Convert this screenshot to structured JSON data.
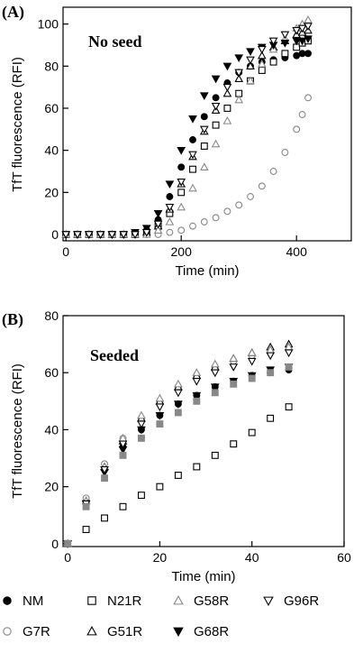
{
  "chart_data": [
    {
      "type": "scatter",
      "panel_label": "(A)",
      "annotation": "No seed",
      "xlabel": "Time (min)",
      "ylabel": "TfT fluorescence (RFI)",
      "xlim": [
        -5,
        495
      ],
      "ylim": [
        -3,
        108
      ],
      "xticks": [
        0,
        200,
        400
      ],
      "yticks": [
        0,
        20,
        40,
        60,
        80,
        100
      ],
      "grid": false,
      "series": [
        {
          "name": "NM",
          "marker": "circle",
          "filled": true,
          "color": "#000000",
          "x": [
            0,
            20,
            40,
            60,
            80,
            100,
            120,
            140,
            160,
            180,
            200,
            220,
            240,
            260,
            280,
            300,
            320,
            340,
            360,
            380,
            400,
            410,
            420
          ],
          "y": [
            0,
            0,
            0,
            0,
            0,
            0,
            0,
            2,
            7,
            18,
            32,
            45,
            56,
            65,
            72,
            77,
            80,
            82,
            83,
            84,
            85,
            86,
            86
          ]
        },
        {
          "name": "G7R",
          "marker": "circle",
          "filled": false,
          "color": "#888888",
          "x": [
            0,
            20,
            40,
            60,
            80,
            100,
            120,
            140,
            160,
            180,
            200,
            220,
            240,
            260,
            280,
            300,
            320,
            340,
            360,
            380,
            400,
            410,
            420
          ],
          "y": [
            0,
            0,
            0,
            0,
            0,
            0,
            0,
            0,
            0,
            1,
            2,
            4,
            6,
            8,
            11,
            14,
            18,
            23,
            30,
            39,
            50,
            57,
            65
          ]
        },
        {
          "name": "N21R",
          "marker": "square",
          "filled": false,
          "color": "#000000",
          "x": [
            0,
            20,
            40,
            60,
            80,
            100,
            120,
            140,
            160,
            180,
            200,
            220,
            240,
            260,
            280,
            300,
            320,
            340,
            360,
            380,
            400,
            410,
            420
          ],
          "y": [
            0,
            0,
            0,
            0,
            0,
            0,
            0,
            1,
            4,
            10,
            20,
            31,
            42,
            52,
            60,
            67,
            73,
            78,
            82,
            86,
            89,
            91,
            92
          ]
        },
        {
          "name": "G51R",
          "marker": "triangle-up",
          "filled": false,
          "color": "#000000",
          "x": [
            0,
            20,
            40,
            60,
            80,
            100,
            120,
            140,
            160,
            180,
            200,
            220,
            240,
            260,
            280,
            300,
            320,
            340,
            360,
            380,
            400,
            410,
            420
          ],
          "y": [
            0,
            0,
            0,
            0,
            0,
            0,
            0,
            1,
            4,
            12,
            24,
            37,
            49,
            59,
            67,
            74,
            80,
            85,
            89,
            92,
            95,
            96,
            97
          ]
        },
        {
          "name": "G58R",
          "marker": "triangle-up",
          "filled": false,
          "color": "#888888",
          "x": [
            0,
            20,
            40,
            60,
            80,
            100,
            120,
            140,
            160,
            180,
            200,
            220,
            240,
            260,
            280,
            300,
            320,
            340,
            360,
            380,
            400,
            410,
            420
          ],
          "y": [
            0,
            0,
            0,
            0,
            0,
            0,
            0,
            0,
            2,
            6,
            13,
            22,
            32,
            43,
            54,
            64,
            73,
            81,
            88,
            93,
            98,
            100,
            102
          ]
        },
        {
          "name": "G68R",
          "marker": "triangle-down",
          "filled": true,
          "color": "#000000",
          "x": [
            0,
            20,
            40,
            60,
            80,
            100,
            120,
            140,
            160,
            180,
            200,
            220,
            240,
            260,
            280,
            300,
            320,
            340,
            360,
            380,
            400,
            410,
            420
          ],
          "y": [
            0,
            0,
            0,
            0,
            0,
            0,
            1,
            3,
            10,
            24,
            40,
            55,
            66,
            74,
            80,
            84,
            87,
            89,
            90,
            91,
            92,
            92,
            93
          ]
        },
        {
          "name": "G96R",
          "marker": "triangle-down",
          "filled": false,
          "color": "#000000",
          "x": [
            0,
            20,
            40,
            60,
            80,
            100,
            120,
            140,
            160,
            180,
            200,
            220,
            240,
            260,
            280,
            300,
            320,
            340,
            360,
            380,
            400,
            410,
            420
          ],
          "y": [
            0,
            0,
            0,
            0,
            0,
            0,
            0,
            1,
            5,
            13,
            25,
            38,
            50,
            61,
            70,
            77,
            83,
            88,
            92,
            95,
            97,
            98,
            99
          ]
        }
      ]
    },
    {
      "type": "scatter",
      "panel_label": "(B)",
      "annotation": "Seeded",
      "xlabel": "Time (min)",
      "ylabel": "TfT fluorescence (RFI)",
      "xlim": [
        -1,
        60
      ],
      "ylim": [
        -1,
        80
      ],
      "xticks": [
        0,
        20,
        40,
        60
      ],
      "yticks": [
        0,
        20,
        40,
        60,
        80
      ],
      "grid": false,
      "series": [
        {
          "name": "NM",
          "marker": "circle",
          "filled": true,
          "color": "#000000",
          "x": [
            0,
            4,
            8,
            12,
            16,
            20,
            24,
            28,
            32,
            36,
            40,
            44,
            48
          ],
          "y": [
            0,
            15,
            26,
            34,
            40,
            45,
            49,
            52,
            55,
            57,
            59,
            60,
            61
          ]
        },
        {
          "name": "G7R",
          "marker": "circle",
          "filled": false,
          "color": "#888888",
          "x": [
            0,
            4,
            8,
            12,
            16,
            20,
            24,
            28,
            32,
            36,
            40,
            44,
            48
          ],
          "y": [
            0,
            16,
            28,
            37,
            44,
            50,
            55,
            59,
            62,
            64,
            66,
            67,
            68
          ]
        },
        {
          "name": "N21R",
          "marker": "square",
          "filled": false,
          "color": "#000000",
          "x": [
            0,
            4,
            8,
            12,
            16,
            20,
            24,
            28,
            32,
            36,
            40,
            44,
            48
          ],
          "y": [
            0,
            5,
            9,
            13,
            17,
            20,
            24,
            27,
            31,
            35,
            39,
            44,
            48
          ]
        },
        {
          "name": "G51R",
          "marker": "triangle-up",
          "filled": false,
          "color": "#000000",
          "x": [
            0,
            4,
            8,
            12,
            16,
            20,
            24,
            28,
            32,
            36,
            40,
            44,
            48
          ],
          "y": [
            0,
            15,
            27,
            36,
            44,
            50,
            55,
            59,
            62,
            65,
            67,
            69,
            70
          ]
        },
        {
          "name": "G58R",
          "marker": "triangle-up",
          "filled": false,
          "color": "#888888",
          "x": [
            0,
            4,
            8,
            12,
            16,
            20,
            24,
            28,
            32,
            36,
            40,
            44,
            48
          ],
          "y": [
            0,
            15,
            27,
            37,
            45,
            51,
            56,
            60,
            63,
            65,
            67,
            68,
            69
          ]
        },
        {
          "name": "G68R",
          "marker": "triangle-down",
          "filled": true,
          "color": "#000000",
          "x": [
            0,
            4,
            8,
            12,
            16,
            20,
            24,
            28,
            32,
            36,
            40,
            44,
            48
          ],
          "y": [
            0,
            14,
            25,
            33,
            40,
            45,
            49,
            52,
            55,
            57,
            59,
            61,
            62
          ]
        },
        {
          "name": "G96R",
          "marker": "triangle-down",
          "filled": false,
          "color": "#000000",
          "x": [
            0,
            4,
            8,
            12,
            16,
            20,
            24,
            28,
            32,
            36,
            40,
            44,
            48
          ],
          "y": [
            0,
            14,
            26,
            35,
            42,
            48,
            53,
            57,
            60,
            62,
            64,
            66,
            67
          ]
        },
        {
          "name": "",
          "marker": "square",
          "filled": true,
          "color": "#888888",
          "x": [
            0,
            4,
            8,
            12,
            16,
            20,
            24,
            28,
            32,
            36,
            40,
            44,
            48
          ],
          "y": [
            0,
            13,
            23,
            31,
            37,
            42,
            46,
            50,
            53,
            56,
            58,
            60,
            62
          ]
        }
      ]
    }
  ],
  "legend": {
    "placement": "bottom",
    "items": [
      {
        "label": "NM",
        "marker": "circle",
        "filled": true,
        "color": "#000000"
      },
      {
        "label": "N21R",
        "marker": "square",
        "filled": false,
        "color": "#000000"
      },
      {
        "label": "G58R",
        "marker": "triangle-up",
        "filled": false,
        "color": "#888888"
      },
      {
        "label": "G96R",
        "marker": "triangle-down",
        "filled": false,
        "color": "#000000"
      },
      {
        "label": "G7R",
        "marker": "circle",
        "filled": false,
        "color": "#888888"
      },
      {
        "label": "G51R",
        "marker": "triangle-up",
        "filled": false,
        "color": "#000000"
      },
      {
        "label": "G68R",
        "marker": "triangle-down",
        "filled": true,
        "color": "#000000"
      }
    ]
  }
}
